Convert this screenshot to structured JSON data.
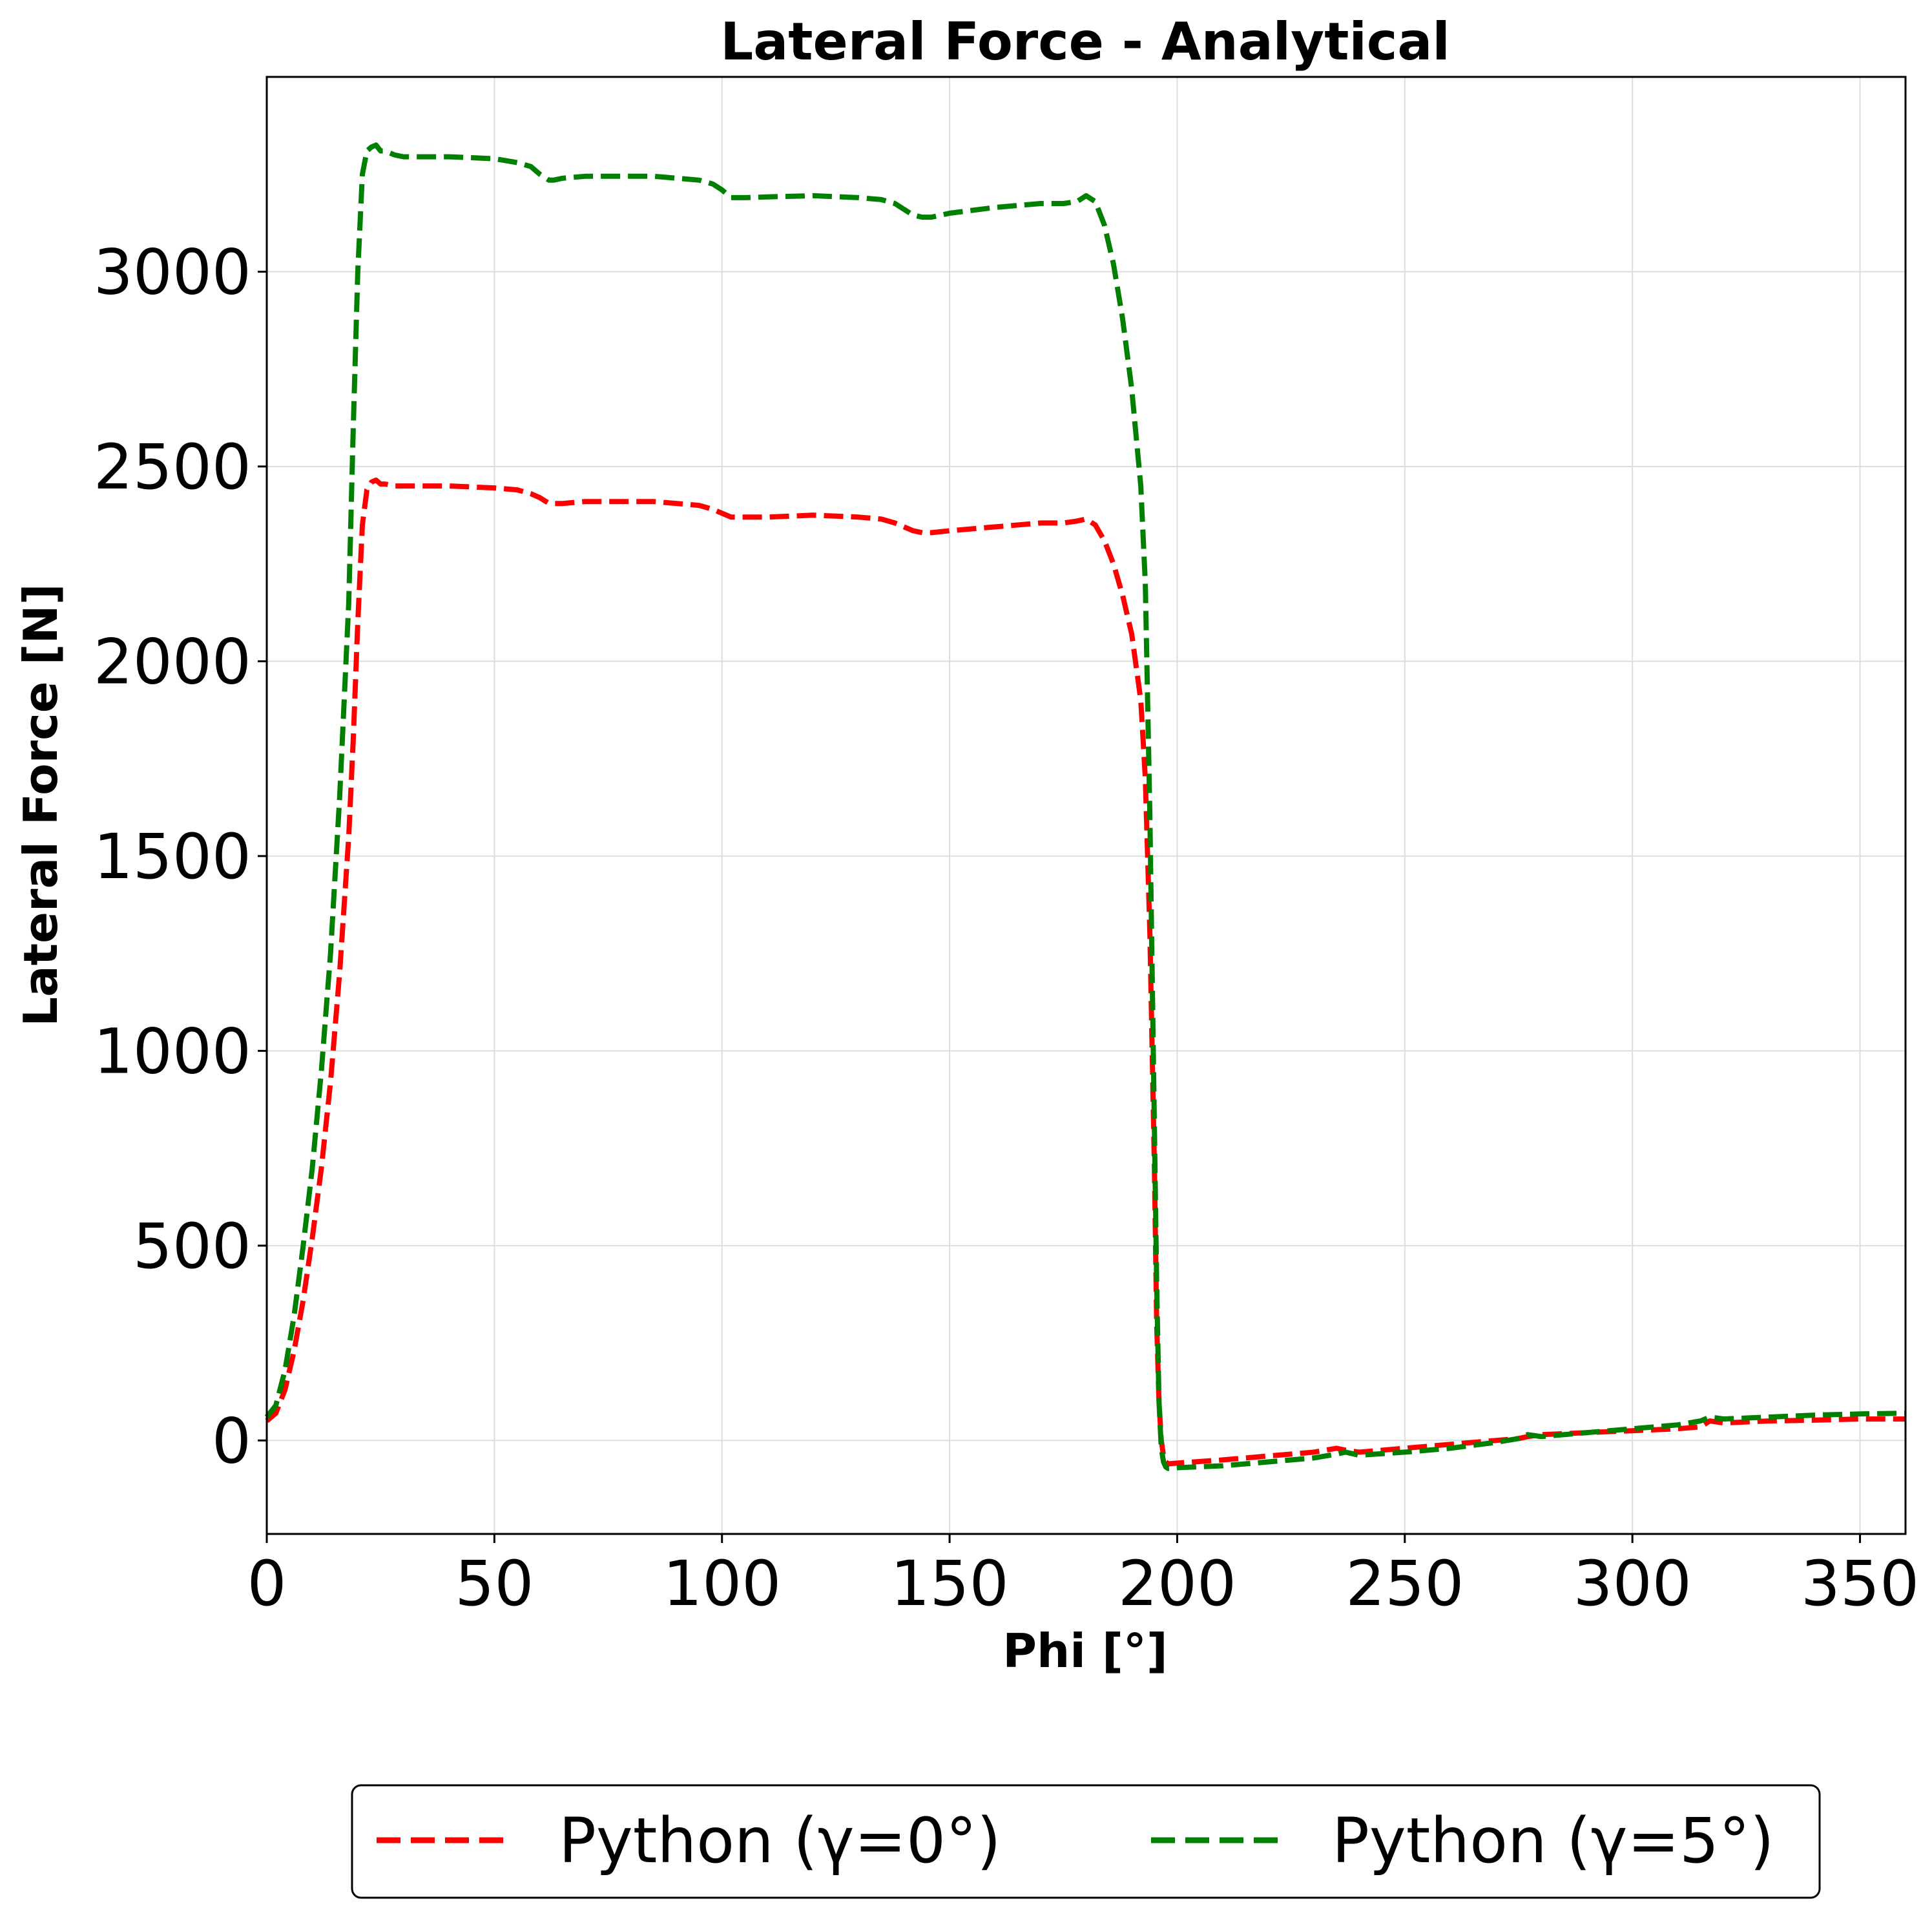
{
  "chart_data": {
    "type": "line",
    "title": "Lateral Force - Analytical",
    "xlabel": "Phi [°]",
    "ylabel": "Lateral Force [N]",
    "xlim": [
      0,
      360
    ],
    "ylim": [
      -240,
      3500
    ],
    "xticks": [
      0,
      50,
      100,
      150,
      200,
      250,
      300,
      350
    ],
    "yticks": [
      0,
      500,
      1000,
      1500,
      2000,
      2500,
      3000
    ],
    "grid": true,
    "legend": {
      "placement": "bottom-center-outside",
      "ncol": 2
    },
    "series": [
      {
        "name": "Python (γ=0°)",
        "color": "#ff0000",
        "linestyle": "dashed",
        "x": [
          0,
          2,
          4,
          6,
          8,
          10,
          12,
          14,
          16,
          18,
          19,
          20,
          21,
          22,
          23,
          24,
          25,
          26,
          28,
          30,
          35,
          40,
          50,
          55,
          58,
          60,
          62,
          63,
          65,
          70,
          80,
          85,
          90,
          95,
          98,
          100,
          102,
          105,
          110,
          120,
          130,
          135,
          138,
          140,
          142,
          144,
          146,
          150,
          160,
          170,
          175,
          178,
          180,
          182,
          184,
          186,
          188,
          190,
          192,
          193,
          194,
          195,
          195.5,
          196,
          196.5,
          197,
          197.5,
          198,
          200,
          210,
          220,
          230,
          235,
          237,
          240,
          250,
          260,
          270,
          275,
          277,
          280,
          290,
          300,
          310,
          315,
          317,
          320,
          330,
          340,
          350,
          360
        ],
        "values": [
          50,
          70,
          130,
          230,
          360,
          520,
          700,
          920,
          1200,
          1550,
          1800,
          2100,
          2350,
          2440,
          2460,
          2465,
          2455,
          2455,
          2450,
          2450,
          2450,
          2450,
          2445,
          2440,
          2430,
          2420,
          2405,
          2405,
          2405,
          2410,
          2410,
          2410,
          2405,
          2400,
          2390,
          2380,
          2370,
          2370,
          2370,
          2375,
          2370,
          2365,
          2355,
          2345,
          2335,
          2330,
          2330,
          2335,
          2345,
          2355,
          2355,
          2360,
          2365,
          2350,
          2310,
          2250,
          2170,
          2070,
          1900,
          1700,
          1300,
          700,
          300,
          100,
          0,
          -40,
          -55,
          -60,
          -58,
          -50,
          -40,
          -30,
          -20,
          -25,
          -30,
          -20,
          -10,
          0,
          5,
          10,
          15,
          20,
          25,
          30,
          35,
          50,
          45,
          50,
          52,
          55,
          55
        ]
      },
      {
        "name": "Python (γ=5°)",
        "color": "#008000",
        "linestyle": "dashed",
        "x": [
          0,
          2,
          4,
          6,
          8,
          10,
          12,
          14,
          16,
          18,
          19,
          20,
          21,
          22,
          23,
          24,
          25,
          26,
          28,
          30,
          35,
          40,
          50,
          55,
          58,
          60,
          62,
          63,
          65,
          70,
          80,
          85,
          90,
          95,
          98,
          100,
          102,
          105,
          110,
          120,
          130,
          135,
          138,
          140,
          142,
          144,
          146,
          150,
          160,
          170,
          175,
          178,
          180,
          182,
          184,
          186,
          188,
          190,
          192,
          193,
          194,
          195,
          195.5,
          196,
          196.5,
          197,
          197.5,
          198,
          200,
          210,
          220,
          230,
          235,
          237,
          240,
          250,
          260,
          270,
          275,
          277,
          280,
          290,
          300,
          310,
          315,
          317,
          320,
          330,
          340,
          350,
          360
        ],
        "values": [
          60,
          90,
          180,
          320,
          500,
          700,
          950,
          1250,
          1650,
          2150,
          2600,
          3000,
          3250,
          3310,
          3320,
          3325,
          3310,
          3310,
          3300,
          3295,
          3295,
          3295,
          3290,
          3280,
          3270,
          3250,
          3235,
          3235,
          3240,
          3245,
          3245,
          3245,
          3240,
          3235,
          3225,
          3210,
          3190,
          3190,
          3192,
          3195,
          3190,
          3185,
          3175,
          3160,
          3145,
          3140,
          3140,
          3150,
          3165,
          3175,
          3175,
          3180,
          3195,
          3180,
          3120,
          3020,
          2880,
          2700,
          2450,
          2200,
          1600,
          800,
          400,
          100,
          -20,
          -55,
          -68,
          -72,
          -70,
          -65,
          -55,
          -45,
          -35,
          -30,
          -38,
          -30,
          -20,
          -5,
          5,
          15,
          10,
          20,
          30,
          40,
          50,
          60,
          55,
          60,
          65,
          68,
          70
        ]
      }
    ]
  }
}
